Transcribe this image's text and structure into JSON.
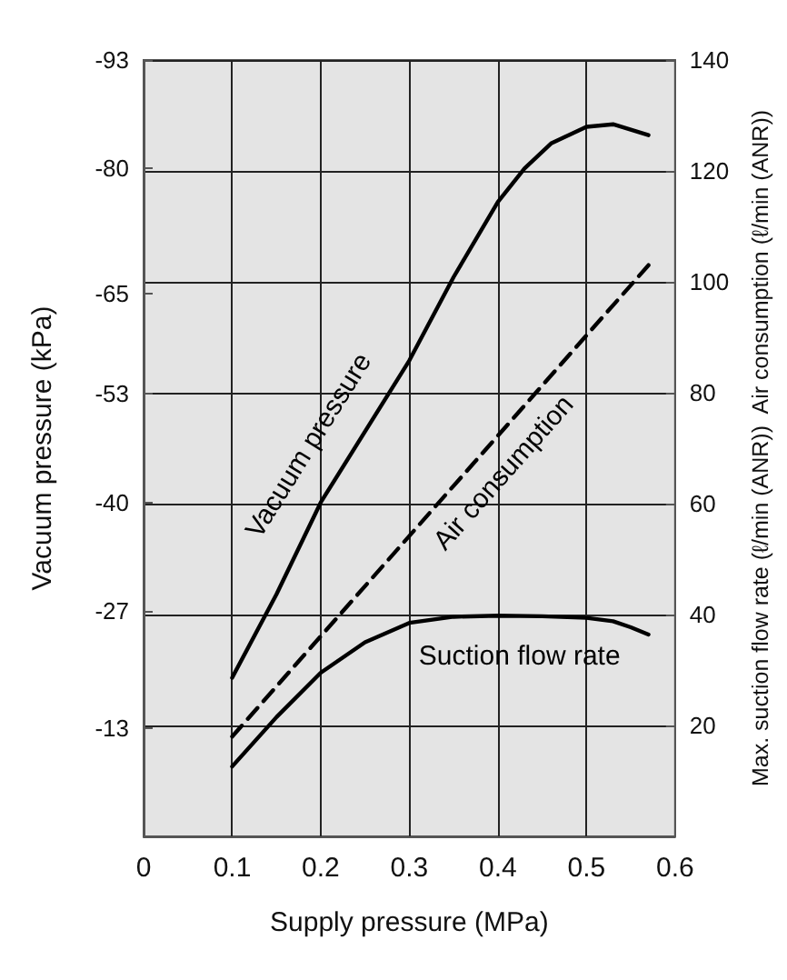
{
  "chart_data": {
    "type": "line",
    "xlabel": "Supply pressure (MPa)",
    "ylabel": "Vacuum pressure (kPa)",
    "y2label": "Max. suction flow rate (ℓ/min (ANR))  Air consumption (ℓ/min (ANR))",
    "series": [
      {
        "name": "Vacuum pressure",
        "color": "#000000",
        "line_style": "solid",
        "x": [
          0.1,
          0.15,
          0.2,
          0.25,
          0.3,
          0.35,
          0.4,
          0.43,
          0.46,
          0.5,
          0.53,
          0.57
        ],
        "values": [
          -19,
          -29,
          -40,
          -48.5,
          -57,
          -67,
          -76,
          -80,
          -83,
          -85,
          -85.3,
          -84
        ]
      },
      {
        "name": "Air consumption",
        "color": "#000000",
        "line_style": "dashed",
        "axis": "y2",
        "x": [
          0.1,
          0.57
        ],
        "values": [
          18,
          103
        ]
      },
      {
        "name": "Suction flow rate",
        "color": "#000000",
        "line_style": "solid",
        "axis": "y2",
        "x": [
          0.1,
          0.15,
          0.2,
          0.25,
          0.3,
          0.35,
          0.4,
          0.45,
          0.5,
          0.53,
          0.55,
          0.57
        ],
        "values": [
          12.6,
          21.5,
          29.5,
          35,
          38.5,
          39.6,
          39.8,
          39.7,
          39.4,
          38.8,
          37.7,
          36.4
        ]
      }
    ],
    "xlim": [
      0,
      0.6
    ],
    "xticks": [
      0,
      0.1,
      0.2,
      0.3,
      0.4,
      0.5,
      0.6
    ],
    "ylim": [
      0,
      -93
    ],
    "yticks": [
      -13,
      -27,
      -40,
      -53,
      -65,
      -80,
      -93
    ],
    "y2lim": [
      0,
      140
    ],
    "y2ticks": [
      20,
      40,
      60,
      80,
      100,
      120,
      140
    ],
    "grid": true,
    "legend": false,
    "marker": "none"
  }
}
